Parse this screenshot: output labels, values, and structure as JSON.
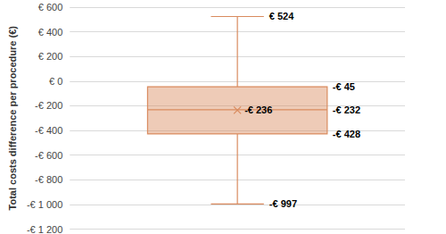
{
  "chart_data": {
    "type": "boxplot",
    "ylabel": "Total costs difference per procedure (€)",
    "stats": {
      "min": -997,
      "q1": -428,
      "median": -232,
      "q3": -45,
      "max": 524,
      "mean": -236
    },
    "value_labels": {
      "min": "-€ 997",
      "q1": "-€ 428",
      "median": "-€ 232",
      "q3": "-€ 45",
      "max": "€ 524",
      "mean": "-€ 236"
    },
    "color": "#d98b5f",
    "ylim": [
      -1200,
      600
    ],
    "yticks": [
      {
        "value": -1200,
        "label": "-€ 1 200"
      },
      {
        "value": -1000,
        "label": "-€ 1 000"
      },
      {
        "value": -800,
        "label": "-€ 800"
      },
      {
        "value": -600,
        "label": "-€ 600"
      },
      {
        "value": -400,
        "label": "-€ 400"
      },
      {
        "value": -200,
        "label": "-€ 200"
      },
      {
        "value": 0,
        "label": "€ 0"
      },
      {
        "value": 200,
        "label": "€ 200"
      },
      {
        "value": 400,
        "label": "€ 400"
      },
      {
        "value": 600,
        "label": "€ 600"
      }
    ],
    "grid": true,
    "data_labels": true,
    "tick_labels": "y"
  }
}
